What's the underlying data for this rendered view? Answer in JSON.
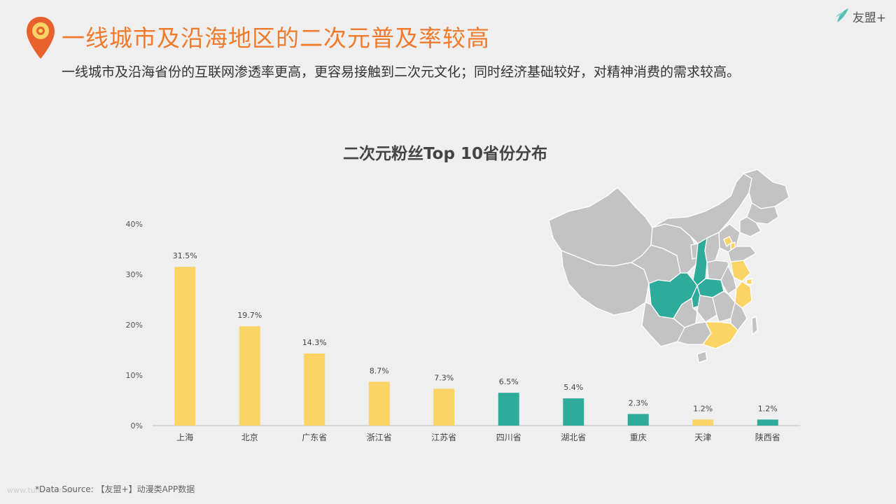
{
  "header": {
    "title": "一线城市及沿海地区的二次元普及率较高",
    "subtitle": "一线城市及沿海省份的互联网渗透率更高，更容易接触到二次元文化；同时经济基础较好，对精神消费的需求较高。",
    "brand": "友盟+"
  },
  "footer": {
    "source": "*Data Source: 【友盟+】动漫类APP数据",
    "watermark": "www.tuliu.com.cn"
  },
  "colors": {
    "accent": "#f07b2c",
    "yellow": "#fcd365",
    "teal": "#2fab9c",
    "map_gray": "#c3c3c3"
  },
  "chart_data": {
    "type": "bar",
    "title": "二次元粉丝Top 10省份分布",
    "categories": [
      "上海",
      "北京",
      "广东省",
      "浙江省",
      "江苏省",
      "四川省",
      "湖北省",
      "重庆",
      "天津",
      "陕西省"
    ],
    "values": [
      31.5,
      19.7,
      14.3,
      8.7,
      7.3,
      6.5,
      5.4,
      2.3,
      1.2,
      1.2
    ],
    "value_labels": [
      "31.5%",
      "19.7%",
      "14.3%",
      "8.7%",
      "7.3%",
      "6.5%",
      "5.4%",
      "2.3%",
      "1.2%",
      "1.2%"
    ],
    "bar_colors": [
      "#fcd365",
      "#fcd365",
      "#fcd365",
      "#fcd365",
      "#fcd365",
      "#2fab9c",
      "#2fab9c",
      "#2fab9c",
      "#fcd365",
      "#2fab9c"
    ],
    "yticks": [
      0,
      10,
      20,
      30,
      40
    ],
    "ytick_labels": [
      "0%",
      "10%",
      "20%",
      "30%",
      "40%"
    ],
    "ylim": [
      0,
      40
    ],
    "grid": false,
    "xlabel": "",
    "ylabel": ""
  }
}
